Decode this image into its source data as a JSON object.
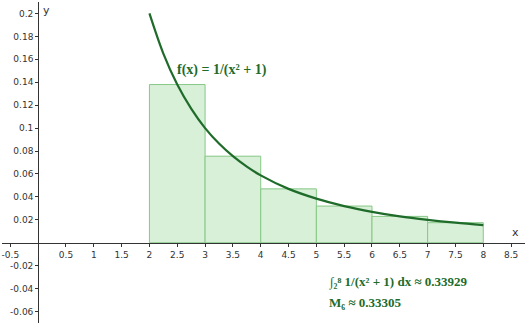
{
  "chart_data": {
    "type": "bar",
    "x_label": "x",
    "y_label": "y",
    "series": [
      {
        "type": "bar",
        "color": "#d8efd8",
        "bins": [
          2,
          3,
          4,
          5,
          6,
          7,
          8
        ],
        "values": [
          0.138,
          0.0755,
          0.047,
          0.032,
          0.023,
          0.0175
        ]
      },
      {
        "type": "line",
        "color": "#1e6b2a",
        "x": [
          2,
          2.25,
          2.5,
          2.75,
          3,
          3.25,
          3.5,
          3.75,
          4,
          4.5,
          5,
          5.5,
          6,
          6.5,
          7,
          7.5,
          8
        ],
        "values": [
          0.2,
          0.165,
          0.138,
          0.117,
          0.1,
          0.0865,
          0.0755,
          0.0664,
          0.0588,
          0.047,
          0.0385,
          0.032,
          0.027,
          0.023,
          0.02,
          0.0175,
          0.0154
        ]
      }
    ],
    "annotations": [
      {
        "text": "f(x) = 1/(x² + 1)",
        "x": 3.3,
        "y": 0.151
      },
      {
        "text": "∫₂⁸ 1/(x² + 1) dx ≈ 0.33929",
        "x": 5.2,
        "y": -0.034
      },
      {
        "text": "M₆ ≈ 0.33305",
        "x": 5.2,
        "y": -0.052
      }
    ],
    "xlim": [
      -0.65,
      8.75
    ],
    "ylim": [
      -0.07,
      0.21
    ],
    "xticks": [
      -0.5,
      0.5,
      1,
      1.5,
      2,
      2.5,
      3,
      3.5,
      4,
      4.5,
      5,
      5.5,
      6,
      6.5,
      7,
      7.5,
      8,
      8.5
    ],
    "yticks": [
      -0.06,
      -0.04,
      -0.02,
      0.02,
      0.04,
      0.06,
      0.08,
      0.1,
      0.12,
      0.14,
      0.16,
      0.18,
      0.2
    ],
    "grid": false
  }
}
